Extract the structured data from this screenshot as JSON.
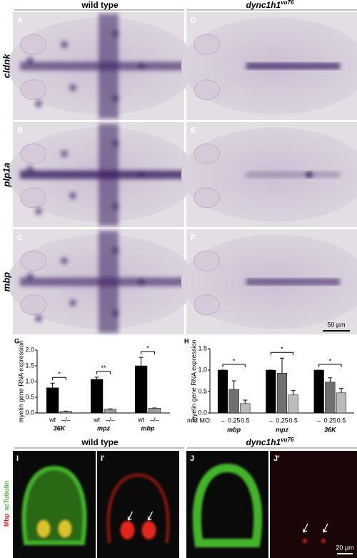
{
  "headers": {
    "wild_type": "wild type",
    "mutant": "dync1h1",
    "mutant_sup": "vu76"
  },
  "row_labels": [
    "cldnk",
    "plp1a",
    "mbp"
  ],
  "panels": {
    "wild_type": [
      "A",
      "B",
      "C"
    ],
    "mutant": [
      "D",
      "E",
      "F"
    ]
  },
  "scale_bar": "50 µm",
  "chart_data": [
    {
      "type": "bar",
      "label": "G",
      "ylabel": "myelin gene RNA expression",
      "categories": [
        "36K",
        "mpz",
        "mbp"
      ],
      "series": [
        {
          "name": "wt",
          "color": "#000000",
          "values": [
            0.8,
            1.07,
            1.5
          ],
          "errors": [
            0.15,
            0.07,
            0.27
          ]
        },
        {
          "name": "–/–",
          "color": "#999999",
          "values": [
            0.05,
            0.12,
            0.15
          ],
          "errors": [
            0.01,
            0.01,
            0.01
          ]
        }
      ],
      "annotations": [
        "*",
        "**",
        "*"
      ],
      "ylim": [
        0,
        2
      ],
      "yticks": [
        {
          "value": 0,
          "label": "0.0"
        },
        0.5,
        {
          "value": 1,
          "label": "1.0"
        },
        1.5,
        {
          "value": 2,
          "label": "2.0"
        }
      ]
    },
    {
      "type": "bar",
      "label": "H",
      "ylabel": "myelin gene RNA expression",
      "xlabel": "mM MO:",
      "categories": [
        "mbp",
        "mpz",
        "36K"
      ],
      "series": [
        {
          "name": "–",
          "color": "#000000",
          "values": [
            1,
            1,
            1
          ],
          "errors": [
            0,
            0,
            0
          ]
        },
        {
          "name": "0.25",
          "color": "#707070",
          "values": [
            0.55,
            0.93,
            0.72
          ],
          "errors": [
            0.2,
            0.35,
            0.1
          ]
        },
        {
          "name": "0.5",
          "color": "#bbbbbb",
          "values": [
            0.22,
            0.42,
            0.47
          ],
          "errors": [
            0.08,
            0.1,
            0.1
          ]
        }
      ],
      "annotations": [
        "*",
        "*",
        "*"
      ],
      "ylim": [
        0,
        1.5
      ],
      "yticks": [
        {
          "value": 0,
          "label": "0.0"
        },
        0.5,
        {
          "value": 1,
          "label": "1.0"
        },
        1.5
      ]
    }
  ],
  "bottom": {
    "headers": {
      "wild_type": "wild type",
      "mutant": "dync1h1",
      "mutant_sup": "vu76"
    },
    "stains": [
      "Mbp",
      "acTubulin"
    ],
    "panels": [
      "I",
      "I'",
      "J",
      "J'"
    ],
    "scale_bar": "20 µm"
  }
}
